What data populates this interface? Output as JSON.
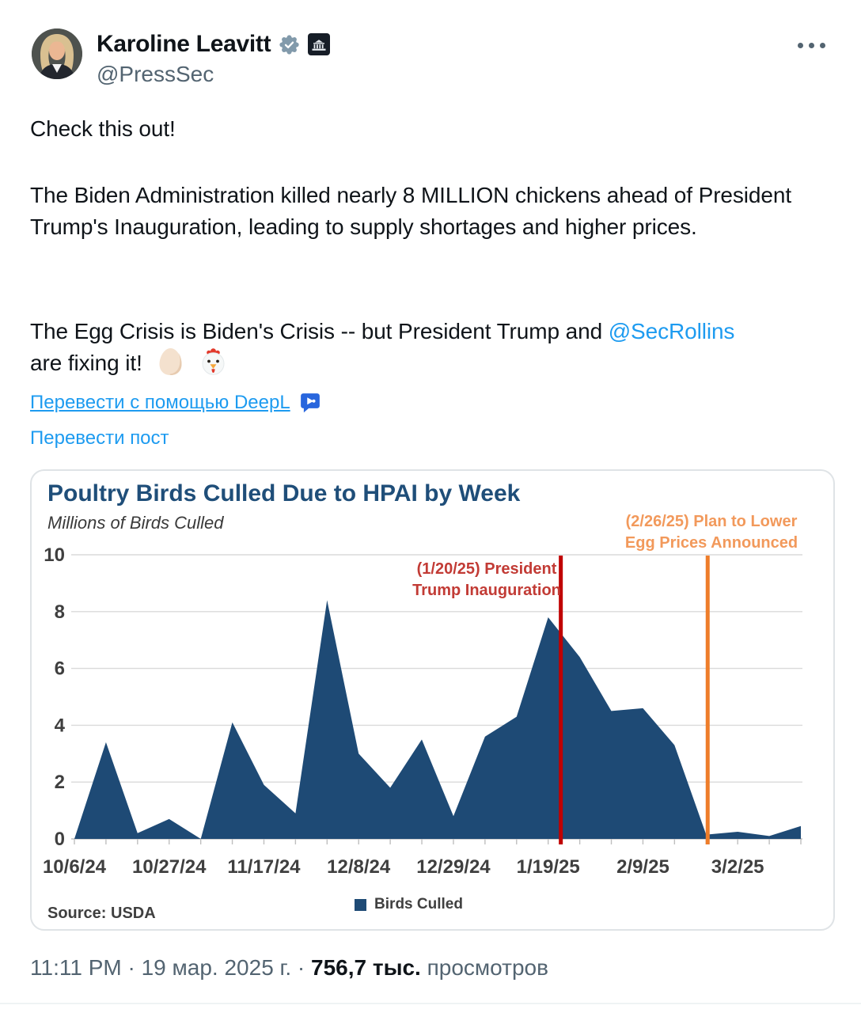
{
  "header": {
    "display_name": "Karoline Leavitt",
    "handle": "@PressSec",
    "verified_badge": "gray-checkmark-verified",
    "affiliation_badge": "white-house"
  },
  "tweet": {
    "p1": "Check this out!",
    "p2": "The Biden Administration killed nearly 8 MILLION chickens ahead of President Trump's Inauguration, leading to supply shortages and higher prices.",
    "p3_before": "The Egg Crisis is Biden's Crisis -- but President Trump and ",
    "p3_mention": "@SecRollins",
    "p3_line2": "are fixing it!",
    "emojis": [
      "egg",
      "rooster"
    ],
    "translate_deepl_label": "Перевести с помощью DeepL",
    "translate_post_label": "Перевести пост"
  },
  "chart_data": {
    "type": "area",
    "title": "Poultry Birds Culled Due to HPAI by Week",
    "subtitle": "Millions of Birds Culled",
    "source": "Source: USDA",
    "legend": [
      {
        "label": "Birds Culled",
        "color": "#1E4A75"
      }
    ],
    "x": [
      "10/6/24",
      "10/13/24",
      "10/20/24",
      "10/27/24",
      "11/3/24",
      "11/10/24",
      "11/17/24",
      "11/24/24",
      "12/1/24",
      "12/8/24",
      "12/15/24",
      "12/22/24",
      "12/29/24",
      "1/5/25",
      "1/12/25",
      "1/19/25",
      "1/26/25",
      "2/2/25",
      "2/9/25",
      "2/16/25",
      "2/23/25",
      "3/2/25",
      "3/9/25",
      "3/16/25"
    ],
    "values": [
      0,
      3.4,
      0.2,
      0.7,
      0,
      4.1,
      1.9,
      0.9,
      8.4,
      3.0,
      1.8,
      3.5,
      0.8,
      3.6,
      4.3,
      7.8,
      6.4,
      4.5,
      4.6,
      3.3,
      0.15,
      0.25,
      0.1,
      0.45
    ],
    "x_tick_labels": [
      "10/6/24",
      "10/27/24",
      "11/17/24",
      "12/8/24",
      "12/29/24",
      "1/19/25",
      "2/9/25",
      "3/2/25"
    ],
    "x_tick_indices": [
      0,
      3,
      6,
      9,
      12,
      15,
      18,
      21
    ],
    "yticks": [
      0,
      2,
      4,
      6,
      8,
      10
    ],
    "ylim": [
      0,
      10
    ],
    "grid": true,
    "legend_position": "bottom-center",
    "annotations": [
      {
        "date": "1/20/25",
        "line1": "(1/20/25)  President",
        "line2": "Trump Inauguration",
        "week_x": 15.4,
        "line_color": "#C00000",
        "text_color": "#C23B35"
      },
      {
        "date": "2/26/25",
        "line1": "(2/26/25)  Plan to Lower",
        "line2": "Egg Prices Announced",
        "week_x": 20.05,
        "line_color": "#EE7D2A",
        "text_color": "#F2995B"
      }
    ],
    "colors": {
      "area": "#1E4A75",
      "title": "#1F4E79",
      "grid": "#DADADA",
      "axis": "#BFBFBF",
      "tick_label": "#3F3F3F"
    }
  },
  "footer": {
    "time": "11:11 PM",
    "dot": "·",
    "date": "19 мар. 2025 г.",
    "views_value": "756,7 тыс.",
    "views_suffix": "просмотров"
  },
  "colors": {
    "link_blue": "#1D9BF0",
    "text_primary": "#0F1419",
    "text_secondary": "#536471"
  }
}
